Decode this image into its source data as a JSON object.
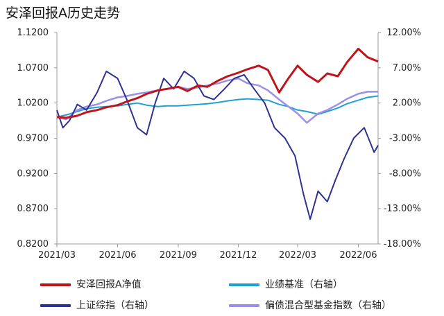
{
  "chart_data": {
    "type": "line",
    "title": "安泽回报A历史走势",
    "x_ticks": [
      "2021/03",
      "2021/06",
      "2021/09",
      "2021/12",
      "2022/03",
      "2022/06"
    ],
    "y_left_ticks": [
      "1.1200",
      "1.0700",
      "1.0200",
      "0.9700",
      "0.9200",
      "0.8700",
      "0.8200"
    ],
    "y_right_ticks": [
      "12.00%",
      "7.00%",
      "2.00%",
      "-3.00%",
      "-8.00%",
      "-13.00%",
      "-18.00%"
    ],
    "y_left_range": [
      0.82,
      1.12
    ],
    "y_right_range": [
      -18,
      12
    ],
    "series": [
      {
        "name": "安泽回报A净值",
        "axis": "left",
        "color": "#c0141c",
        "x": [
          "2021-03-01",
          "2021-03-15",
          "2021-04-01",
          "2021-04-15",
          "2021-05-01",
          "2021-05-15",
          "2021-06-01",
          "2021-06-15",
          "2021-07-01",
          "2021-07-15",
          "2021-08-01",
          "2021-08-15",
          "2021-09-01",
          "2021-09-15",
          "2021-10-01",
          "2021-10-15",
          "2021-11-01",
          "2021-11-15",
          "2021-12-01",
          "2021-12-15",
          "2022-01-01",
          "2022-01-15",
          "2022-02-01",
          "2022-02-15",
          "2022-03-01",
          "2022-03-15",
          "2022-04-01",
          "2022-04-15",
          "2022-05-01",
          "2022-05-15",
          "2022-06-01",
          "2022-06-15",
          "2022-07-01"
        ],
        "values": [
          1.0,
          0.999,
          1.002,
          1.007,
          1.01,
          1.014,
          1.017,
          1.022,
          1.027,
          1.033,
          1.038,
          1.04,
          1.043,
          1.037,
          1.045,
          1.043,
          1.052,
          1.058,
          1.063,
          1.068,
          1.073,
          1.067,
          1.035,
          1.055,
          1.073,
          1.06,
          1.05,
          1.062,
          1.058,
          1.078,
          1.097,
          1.085,
          1.079
        ]
      },
      {
        "name": "业绩基准（右轴）",
        "axis": "right",
        "color": "#1ea0d6",
        "x": [
          "2021-03-01",
          "2021-03-15",
          "2021-04-01",
          "2021-04-15",
          "2021-05-01",
          "2021-05-15",
          "2021-06-01",
          "2021-06-15",
          "2021-07-01",
          "2021-07-15",
          "2021-08-01",
          "2021-08-15",
          "2021-09-01",
          "2021-09-15",
          "2021-10-01",
          "2021-10-15",
          "2021-11-01",
          "2021-11-15",
          "2021-12-01",
          "2021-12-15",
          "2022-01-01",
          "2022-01-15",
          "2022-02-01",
          "2022-02-15",
          "2022-03-01",
          "2022-03-15",
          "2022-04-01",
          "2022-04-15",
          "2022-05-01",
          "2022-05-15",
          "2022-06-01",
          "2022-06-15",
          "2022-07-01"
        ],
        "values": [
          0.0,
          0.3,
          0.8,
          1.2,
          1.4,
          1.5,
          1.6,
          1.8,
          2.0,
          1.7,
          1.5,
          1.6,
          1.6,
          1.7,
          1.8,
          1.9,
          2.1,
          2.3,
          2.5,
          2.6,
          2.5,
          2.4,
          1.8,
          1.5,
          1.0,
          0.8,
          0.4,
          0.8,
          1.3,
          1.9,
          2.4,
          2.8,
          3.0
        ]
      },
      {
        "name": "上证综指（右轴）",
        "axis": "right",
        "color": "#2e3192",
        "x": [
          "2021-03-01",
          "2021-03-10",
          "2021-03-20",
          "2021-04-01",
          "2021-04-15",
          "2021-05-01",
          "2021-05-15",
          "2021-06-01",
          "2021-06-15",
          "2021-07-01",
          "2021-07-15",
          "2021-07-28",
          "2021-08-10",
          "2021-08-25",
          "2021-09-10",
          "2021-09-25",
          "2021-10-10",
          "2021-10-25",
          "2021-11-10",
          "2021-11-25",
          "2021-12-10",
          "2021-12-25",
          "2022-01-10",
          "2022-01-25",
          "2022-02-10",
          "2022-02-25",
          "2022-03-10",
          "2022-03-20",
          "2022-04-01",
          "2022-04-15",
          "2022-04-27",
          "2022-05-10",
          "2022-05-25",
          "2022-06-10",
          "2022-06-25",
          "2022-07-01"
        ],
        "values": [
          1.0,
          -1.5,
          -0.5,
          1.8,
          1.0,
          3.5,
          6.5,
          5.5,
          2.5,
          -1.5,
          -2.5,
          2.0,
          5.5,
          4.0,
          6.5,
          5.5,
          3.0,
          2.5,
          4.0,
          5.5,
          6.0,
          4.0,
          2.0,
          -1.5,
          -3.0,
          -5.5,
          -11.0,
          -14.5,
          -10.5,
          -12.0,
          -9.0,
          -6.0,
          -3.0,
          -1.5,
          -5.0,
          -4.0
        ]
      },
      {
        "name": "偏债混合型基金指数（右轴）",
        "axis": "right",
        "color": "#9b8fe8",
        "x": [
          "2021-03-01",
          "2021-03-15",
          "2021-04-01",
          "2021-04-15",
          "2021-05-01",
          "2021-05-15",
          "2021-06-01",
          "2021-06-15",
          "2021-07-01",
          "2021-07-15",
          "2021-08-01",
          "2021-08-15",
          "2021-09-01",
          "2021-09-15",
          "2021-10-01",
          "2021-10-15",
          "2021-11-01",
          "2021-11-15",
          "2021-12-01",
          "2021-12-15",
          "2022-01-01",
          "2022-01-15",
          "2022-02-01",
          "2022-02-15",
          "2022-03-01",
          "2022-03-15",
          "2022-04-01",
          "2022-04-15",
          "2022-05-01",
          "2022-05-15",
          "2022-06-01",
          "2022-06-15",
          "2022-07-01"
        ],
        "values": [
          0.0,
          -0.3,
          1.0,
          1.5,
          1.8,
          2.3,
          2.8,
          3.0,
          3.3,
          3.5,
          3.8,
          4.0,
          4.3,
          4.0,
          4.2,
          4.5,
          4.8,
          5.2,
          5.5,
          4.8,
          4.5,
          3.8,
          2.5,
          1.5,
          0.5,
          -0.8,
          0.5,
          1.0,
          1.8,
          2.6,
          3.3,
          3.6,
          3.6
        ]
      }
    ],
    "legend_position": "bottom",
    "grid": false
  }
}
